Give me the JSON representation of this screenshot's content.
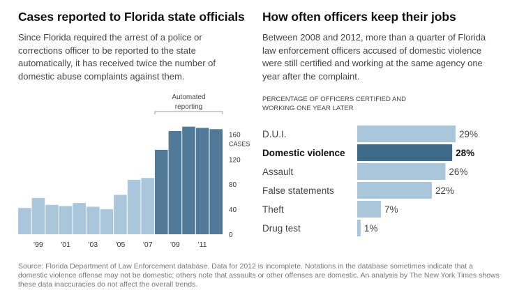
{
  "left": {
    "title": "Cases reported to Florida state officials",
    "description": "Since Florida required the arrest of a police or corrections officer to be reported to the state automatically, it has received twice the number of domestic abuse complaints against them."
  },
  "right": {
    "title": "How often officers keep their jobs",
    "description": "Between 2008 and 2012, more than a quarter of Florida law enforcement officers accused of domestic violence were still certified and working at the same agency one year after the complaint.",
    "subhead": "PERCENTAGE OF OFFICERS CERTIFIED AND WORKING ONE YEAR LATER"
  },
  "source": "Source: Florida Department of Law Enforcement database. Data for 2012 is incomplete. Notations in the database sometimes indicate that a domestic violence offense may not be domestic; others note that assaults or other offenses are domestic. An analysis by The New York Times shows these data inaccuracies do not affect the overall trends.",
  "colors": {
    "light_bar": "#a9c6da",
    "dark_bar": "#507a98",
    "highlight_bar": "#3e6a89"
  },
  "chart_data": [
    {
      "type": "bar",
      "categories": [
        "1998",
        "1999",
        "2000",
        "2001",
        "2002",
        "2003",
        "2004",
        "2005",
        "2006",
        "2007",
        "2008",
        "2009",
        "2010",
        "2011",
        "2012"
      ],
      "values": [
        42,
        58,
        47,
        45,
        50,
        44,
        40,
        63,
        87,
        90,
        135,
        165,
        172,
        170,
        168
      ],
      "highlight_from": "2008",
      "tick_labels": [
        "'99",
        "'01",
        "'03",
        "'05",
        "'07",
        "'09",
        "'11"
      ],
      "y_ticks": [
        "0",
        "40",
        "80",
        "120",
        "160"
      ],
      "ylabel": "CASES",
      "ylim": [
        0,
        185
      ],
      "annotation": "Automated reporting"
    },
    {
      "type": "bar",
      "orientation": "horizontal",
      "categories": [
        "D.U.I.",
        "Domestic violence",
        "Assault",
        "False statements",
        "Theft",
        "Drug test"
      ],
      "values": [
        29,
        28,
        26,
        22,
        7,
        1
      ],
      "labels": [
        "29%",
        "28%",
        "26%",
        "22%",
        "7%",
        "1%"
      ],
      "highlight": "Domestic violence",
      "xlim": [
        0,
        29
      ]
    }
  ]
}
